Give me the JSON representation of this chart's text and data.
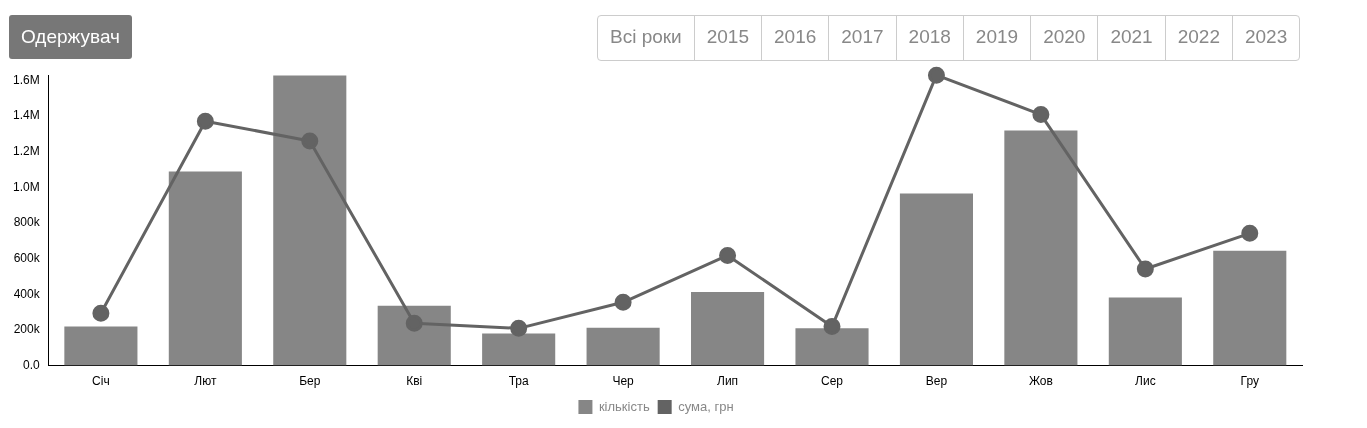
{
  "chart_data": {
    "type": "bar",
    "categories": [
      "Січ",
      "Лют",
      "Бер",
      "Кві",
      "Тра",
      "Чер",
      "Лип",
      "Сер",
      "Вер",
      "Жов",
      "Лис",
      "Гру"
    ],
    "series": [
      {
        "name": "кількість",
        "color": "#868686",
        "values": [
          219000,
          1089000,
          1627000,
          336000,
          180000,
          212000,
          413000,
          210000,
          965000,
          1318000,
          382000,
          644000
        ]
      },
      {
        "name": "сума, грн",
        "type": "line",
        "color": "#636363",
        "marker": "circle",
        "values": [
          294000,
          1371000,
          1260000,
          238000,
          209000,
          355000,
          618000,
          219000,
          1629000,
          1408000,
          542000,
          742000
        ]
      }
    ],
    "ylim": [
      0,
      1630000
    ],
    "yticks": [
      {
        "value": 0,
        "label": "0.0"
      },
      {
        "value": 200000,
        "label": "200k"
      },
      {
        "value": 400000,
        "label": "400k"
      },
      {
        "value": 600000,
        "label": "600k"
      },
      {
        "value": 800000,
        "label": "800k"
      },
      {
        "value": 1000000,
        "label": "1.0M"
      },
      {
        "value": 1200000,
        "label": "1.2M"
      },
      {
        "value": 1400000,
        "label": "1.4M"
      },
      {
        "value": 1600000,
        "label": "1.6M"
      }
    ],
    "grid": false,
    "legend": "bottom",
    "annotations": [
      "Одержувач",
      "Всі роки",
      "2015",
      "2016",
      "2017",
      "2018",
      "2019",
      "2020",
      "2021",
      "2022",
      "2023"
    ]
  }
}
